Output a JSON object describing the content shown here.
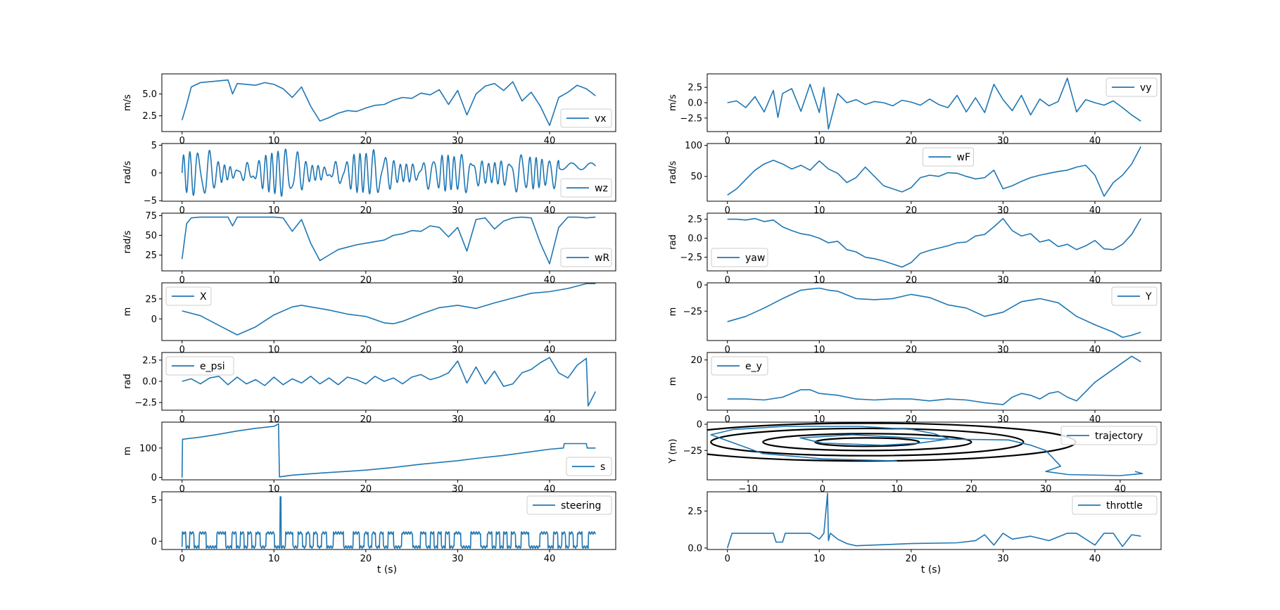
{
  "figure": {
    "xlabel_left": "t (s)",
    "xlabel_right": "t (s)"
  },
  "colors": {
    "series": "#1f77b4",
    "track": "#000000",
    "axes": "#000000",
    "background": "#ffffff"
  },
  "chart_data": [
    {
      "id": "vx",
      "type": "line",
      "col": 0,
      "row": 0,
      "legend": "vx",
      "legend_loc": "lower-right",
      "ylabel": "m/s",
      "xlim": [
        -2.2,
        47.2
      ],
      "ylim": [
        0.7,
        7.3
      ],
      "xticks": [
        0,
        10,
        20,
        30,
        40
      ],
      "yticks": [
        2.5,
        5.0
      ],
      "ytick_labels": [
        "2.5",
        "5.0"
      ],
      "x": [
        0,
        0.5,
        1,
        2,
        3,
        4,
        5,
        5.5,
        6,
        7,
        8,
        9,
        10,
        11,
        12,
        13,
        14,
        15,
        16,
        17,
        18,
        19,
        20,
        21,
        22,
        23,
        24,
        25,
        26,
        27,
        28,
        29,
        30,
        31,
        32,
        33,
        34,
        35,
        36,
        37,
        38,
        39,
        40,
        41,
        42,
        43,
        44,
        45
      ],
      "y": [
        2.0,
        3.8,
        5.8,
        6.3,
        6.4,
        6.5,
        6.6,
        5.0,
        6.2,
        6.1,
        6.0,
        6.3,
        6.1,
        5.6,
        4.6,
        5.8,
        3.6,
        1.9,
        2.3,
        2.8,
        3.1,
        3.0,
        3.4,
        3.7,
        3.8,
        4.3,
        4.6,
        4.5,
        5.1,
        4.9,
        5.5,
        3.8,
        5.4,
        2.6,
        5.0,
        5.9,
        6.2,
        5.4,
        6.4,
        4.2,
        5.2,
        3.6,
        1.4,
        4.6,
        5.2,
        6.0,
        5.6,
        4.8
      ]
    },
    {
      "id": "vy",
      "type": "line",
      "col": 1,
      "row": 0,
      "legend": "vy",
      "legend_loc": "upper-right",
      "ylabel": "m/s",
      "xlim": [
        -2.2,
        47.2
      ],
      "ylim": [
        -4.7,
        4.7
      ],
      "xticks": [
        0,
        10,
        20,
        30,
        40
      ],
      "yticks": [
        -2.5,
        0.0,
        2.5
      ],
      "ytick_labels": [
        "−2.5",
        "0.0",
        "2.5"
      ],
      "x": [
        0,
        1,
        2,
        3,
        4,
        5,
        5.5,
        6,
        7,
        8,
        9,
        10,
        10.5,
        11,
        12,
        13,
        14,
        15,
        16,
        17,
        18,
        19,
        20,
        21,
        22,
        23,
        24,
        25,
        26,
        27,
        28,
        29,
        30,
        31,
        32,
        33,
        34,
        35,
        36,
        37,
        38,
        39,
        40,
        41,
        42,
        43,
        44,
        45
      ],
      "y": [
        0.0,
        0.3,
        -0.8,
        1.0,
        -1.5,
        2.0,
        -2.4,
        1.5,
        2.3,
        -1.4,
        3.0,
        -1.6,
        2.5,
        -4.3,
        1.5,
        0.0,
        0.5,
        -0.3,
        0.2,
        0.0,
        -0.5,
        0.4,
        0.1,
        -0.4,
        0.6,
        -0.3,
        -0.8,
        1.2,
        -1.5,
        0.8,
        -1.6,
        3.0,
        0.5,
        -1.3,
        1.2,
        -2.0,
        0.6,
        -0.5,
        0.2,
        4.0,
        -1.5,
        0.5,
        0.0,
        -0.4,
        0.3,
        -0.8,
        -2.0,
        -3.0
      ]
    },
    {
      "id": "wz",
      "type": "line",
      "col": 0,
      "row": 1,
      "legend": "wz",
      "legend_loc": "lower-right",
      "ylabel": "rad/s",
      "xlim": [
        -2.2,
        47.2
      ],
      "ylim": [
        -5.1,
        5.3
      ],
      "xticks": [
        0,
        10,
        20,
        30,
        40
      ],
      "yticks": [
        -5,
        0,
        5
      ],
      "ytick_labels": [
        "−5",
        "0",
        "5"
      ],
      "x_range": [
        0,
        45
      ],
      "oscillation": {
        "frequency_per_s": 2.3,
        "amplitude": 3.6,
        "end_calm_from": 41
      }
    },
    {
      "id": "wF",
      "type": "line",
      "col": 1,
      "row": 1,
      "legend": "wF",
      "legend_loc": "upper-center",
      "ylabel": "rad/s",
      "xlim": [
        -2.2,
        47.2
      ],
      "ylim": [
        10,
        103
      ],
      "xticks": [
        0,
        10,
        20,
        30,
        40
      ],
      "yticks": [
        50,
        100
      ],
      "ytick_labels": [
        "50",
        "100"
      ],
      "x": [
        0,
        1,
        2,
        3,
        4,
        5,
        6,
        7,
        8,
        9,
        10,
        11,
        12,
        13,
        14,
        15,
        16,
        17,
        18,
        19,
        20,
        21,
        22,
        23,
        24,
        25,
        26,
        27,
        28,
        29,
        30,
        31,
        32,
        33,
        34,
        35,
        36,
        37,
        38,
        39,
        40,
        41,
        42,
        43,
        44,
        45
      ],
      "y": [
        20,
        30,
        45,
        60,
        70,
        76,
        70,
        62,
        68,
        60,
        75,
        62,
        55,
        40,
        48,
        65,
        50,
        35,
        30,
        25,
        32,
        48,
        52,
        50,
        56,
        55,
        50,
        46,
        48,
        60,
        30,
        35,
        42,
        48,
        52,
        55,
        58,
        60,
        65,
        68,
        52,
        18,
        40,
        52,
        70,
        98
      ]
    },
    {
      "id": "wR",
      "type": "line",
      "col": 0,
      "row": 2,
      "legend": "wR",
      "legend_loc": "lower-right",
      "ylabel": "rad/s",
      "xlim": [
        -2.2,
        47.2
      ],
      "ylim": [
        5,
        78
      ],
      "xticks": [
        0,
        10,
        20,
        30,
        40
      ],
      "yticks": [
        25,
        50,
        75
      ],
      "ytick_labels": [
        "25",
        "50",
        "75"
      ],
      "x": [
        0,
        0.5,
        1,
        2,
        3,
        4,
        5,
        5.5,
        6,
        7,
        8,
        9,
        10,
        11,
        12,
        13,
        14,
        15,
        16,
        17,
        18,
        19,
        20,
        21,
        22,
        23,
        24,
        25,
        26,
        27,
        28,
        29,
        30,
        31,
        32,
        33,
        34,
        35,
        36,
        37,
        38,
        39,
        40,
        41,
        42,
        43,
        44,
        45
      ],
      "y": [
        20,
        65,
        72,
        73,
        73,
        73,
        73,
        62,
        73,
        73,
        73,
        73,
        73,
        72,
        55,
        70,
        40,
        18,
        25,
        32,
        35,
        38,
        40,
        42,
        44,
        50,
        52,
        56,
        55,
        62,
        60,
        48,
        60,
        30,
        70,
        72,
        58,
        68,
        72,
        73,
        72,
        40,
        14,
        60,
        73,
        73,
        72,
        73
      ]
    },
    {
      "id": "yaw",
      "type": "line",
      "col": 1,
      "row": 2,
      "legend": "yaw",
      "legend_loc": "lower-left",
      "ylabel": "rad",
      "xlim": [
        -2.2,
        47.2
      ],
      "ylim": [
        -4.3,
        3.3
      ],
      "xticks": [
        0,
        10,
        20,
        30,
        40
      ],
      "yticks": [
        -2.5,
        0.0,
        2.5
      ],
      "ytick_labels": [
        "−2.5",
        "0.0",
        "2.5"
      ],
      "x": [
        0,
        1,
        2,
        3,
        4,
        5,
        6,
        7,
        8,
        9,
        10,
        11,
        12,
        13,
        14,
        15,
        16,
        17,
        18,
        19,
        20,
        21,
        22,
        23,
        24,
        25,
        26,
        27,
        28,
        29,
        30,
        31,
        32,
        33,
        34,
        35,
        36,
        37,
        38,
        39,
        40,
        41,
        42,
        43,
        44,
        45
      ],
      "y": [
        2.5,
        2.5,
        2.4,
        2.6,
        2.2,
        2.4,
        1.5,
        1.0,
        0.6,
        0.4,
        0.0,
        -0.6,
        -0.4,
        -1.5,
        -1.8,
        -2.5,
        -2.7,
        -3.0,
        -3.4,
        -3.8,
        -3.2,
        -2.0,
        -1.6,
        -1.3,
        -1.0,
        -0.6,
        -0.5,
        0.3,
        0.5,
        1.5,
        2.6,
        1.0,
        0.3,
        0.6,
        -0.5,
        -0.2,
        -1.1,
        -0.8,
        -1.5,
        -1.0,
        -0.3,
        -1.4,
        -1.5,
        -0.8,
        0.5,
        2.6
      ]
    },
    {
      "id": "X",
      "type": "line",
      "col": 0,
      "row": 3,
      "legend": "X",
      "legend_loc": "upper-left",
      "ylabel": "m",
      "xlim": [
        -2.2,
        47.2
      ],
      "ylim": [
        -27,
        45
      ],
      "xticks": [
        0,
        10,
        20,
        30,
        40
      ],
      "yticks": [
        0,
        25
      ],
      "ytick_labels": [
        "0",
        "25"
      ],
      "x": [
        0,
        2,
        4,
        6,
        8,
        10,
        12,
        13,
        14,
        16,
        18,
        20,
        22,
        23,
        24,
        26,
        28,
        30,
        32,
        34,
        36,
        38,
        40,
        42,
        44,
        45
      ],
      "y": [
        10,
        4,
        -8,
        -20,
        -10,
        5,
        15,
        17,
        15,
        11,
        6,
        3,
        -5,
        -6,
        -3,
        6,
        14,
        17,
        13,
        20,
        26,
        32,
        34,
        38,
        44,
        44
      ]
    },
    {
      "id": "Y",
      "type": "line",
      "col": 1,
      "row": 3,
      "legend": "Y",
      "legend_loc": "upper-right",
      "ylabel": "m",
      "xlim": [
        -2.2,
        47.2
      ],
      "ylim": [
        -53,
        2
      ],
      "xticks": [
        0,
        10,
        20,
        30,
        40
      ],
      "yticks": [
        -25,
        0
      ],
      "ytick_labels": [
        "−25",
        "0"
      ],
      "x": [
        0,
        2,
        4,
        6,
        8,
        10,
        11,
        12,
        14,
        16,
        18,
        20,
        22,
        24,
        26,
        28,
        30,
        32,
        34,
        36,
        38,
        40,
        42,
        43,
        44,
        45
      ],
      "y": [
        -35,
        -30,
        -22,
        -13,
        -5,
        -3,
        -5,
        -6,
        -13,
        -14,
        -13,
        -9,
        -12,
        -19,
        -22,
        -30,
        -26,
        -16,
        -13,
        -17,
        -30,
        -38,
        -45,
        -50,
        -48,
        -45
      ]
    },
    {
      "id": "e_psi",
      "type": "line",
      "col": 0,
      "row": 4,
      "legend": "e_psi",
      "legend_loc": "upper-left",
      "ylabel": "rad",
      "xlim": [
        -2.2,
        47.2
      ],
      "ylim": [
        -3.4,
        3.4
      ],
      "xticks": [
        0,
        10,
        20,
        30,
        40
      ],
      "yticks": [
        -2.5,
        0.0,
        2.5
      ],
      "ytick_labels": [
        "−2.5",
        "0.0",
        "2.5"
      ],
      "x": [
        0,
        1,
        2,
        3,
        4,
        5,
        6,
        7,
        8,
        9,
        10,
        11,
        12,
        13,
        14,
        15,
        16,
        17,
        18,
        19,
        20,
        21,
        22,
        23,
        24,
        25,
        26,
        27,
        28,
        29,
        30,
        31,
        32,
        33,
        34,
        35,
        36,
        37,
        38,
        39,
        40,
        41,
        42,
        43,
        44,
        44.2,
        45
      ],
      "y": [
        0,
        0.3,
        -0.3,
        0.4,
        0.6,
        -0.4,
        0.5,
        -0.3,
        0.2,
        -0.5,
        0.5,
        -0.4,
        0.3,
        -0.2,
        0.6,
        -0.3,
        0.4,
        -0.4,
        0.5,
        0.2,
        -0.3,
        0.6,
        0.0,
        0.4,
        -0.3,
        0.5,
        0.8,
        0.2,
        0.5,
        1.0,
        2.4,
        -0.2,
        1.7,
        -0.3,
        1.2,
        -0.6,
        -0.3,
        1.0,
        1.4,
        2.2,
        2.8,
        1.0,
        0.4,
        1.9,
        2.7,
        -2.9,
        -1.2
      ]
    },
    {
      "id": "e_y",
      "type": "line",
      "col": 1,
      "row": 4,
      "legend": "e_y",
      "legend_loc": "upper-left",
      "ylabel": "m",
      "xlim": [
        -2.2,
        47.2
      ],
      "ylim": [
        -7,
        24
      ],
      "xticks": [
        0,
        10,
        20,
        30,
        40
      ],
      "yticks": [
        0,
        20
      ],
      "ytick_labels": [
        "0",
        "20"
      ],
      "x": [
        0,
        2,
        4,
        6,
        8,
        9,
        10,
        12,
        14,
        16,
        18,
        20,
        22,
        24,
        26,
        28,
        30,
        31,
        32,
        33,
        34,
        35,
        36,
        37,
        38,
        40,
        42,
        44,
        45
      ],
      "y": [
        -1,
        -1,
        -1.5,
        0,
        4,
        4,
        2,
        1,
        -1,
        -1.5,
        -1,
        -1,
        -2,
        -1,
        -1.5,
        -3,
        -4,
        0,
        2,
        1,
        -1,
        2,
        3,
        0,
        -2,
        8,
        15,
        22,
        19
      ]
    },
    {
      "id": "s",
      "type": "line",
      "col": 0,
      "row": 5,
      "legend": "s",
      "legend_loc": "lower-right",
      "ylabel": "m",
      "xlim": [
        -2.2,
        47.2
      ],
      "ylim": [
        -8,
        188
      ],
      "xticks": [
        0,
        10,
        20,
        30,
        40
      ],
      "yticks": [
        0,
        100
      ],
      "ytick_labels": [
        "0",
        "100"
      ],
      "x": [
        0,
        0.05,
        2,
        4,
        6,
        8,
        10,
        10.5,
        10.6,
        12,
        15,
        18,
        20,
        23,
        26,
        30,
        32,
        35,
        40,
        41.5,
        41.6,
        44,
        44.1,
        45
      ],
      "y": [
        0,
        130,
        137,
        147,
        158,
        167,
        174,
        182,
        2,
        8,
        15,
        21,
        25,
        34,
        45,
        57,
        65,
        75,
        96,
        100,
        115,
        115,
        100,
        100
      ]
    },
    {
      "id": "trajectory",
      "type": "line",
      "col": 1,
      "row": 5,
      "legend": "trajectory",
      "legend_loc": "upper-right",
      "ylabel": "Y (m)",
      "xlim": [
        -15.5,
        45.5
      ],
      "ylim": [
        -53,
        2
      ],
      "xticks": [
        -10,
        0,
        10,
        20,
        30,
        40
      ],
      "xtick_labels": [
        "−10",
        "0",
        "10",
        "20",
        "30",
        "40"
      ],
      "yticks": [
        -25,
        0
      ],
      "ytick_labels": [
        "−25",
        "0"
      ],
      "x": [
        10,
        0,
        -8,
        -15,
        -12,
        -5,
        5,
        12,
        15,
        17,
        13,
        8,
        0,
        -3,
        4,
        12,
        15,
        25,
        28,
        30,
        32,
        30,
        33,
        40,
        43,
        42
      ],
      "y": [
        -35,
        -33,
        -28,
        -10,
        -5,
        -2,
        -2,
        -5,
        -9,
        -14,
        -18,
        -20,
        -18,
        -13,
        -10,
        -13,
        -14,
        -15,
        -20,
        -25,
        -40,
        -45,
        -48,
        -49,
        -47,
        -45
      ],
      "track": {
        "center": [
          6,
          -17
        ],
        "loops": [
          {
            "rx": 28,
            "ry": 18
          },
          {
            "rx": 21,
            "ry": 13
          },
          {
            "rx": 14,
            "ry": 8
          },
          {
            "rx": 7,
            "ry": 4
          }
        ]
      }
    },
    {
      "id": "steering",
      "type": "line",
      "col": 0,
      "row": 6,
      "legend": "steering",
      "legend_loc": "upper-right",
      "ylabel": "",
      "xlim": [
        -2.2,
        47.2
      ],
      "ylim": [
        -1.0,
        6.0
      ],
      "xticks": [
        0,
        10,
        20,
        30,
        40
      ],
      "xtick_labels": [
        "0",
        "10",
        "20",
        "30",
        "40"
      ],
      "yticks": [
        0,
        5
      ],
      "ytick_labels": [
        "0",
        "5"
      ],
      "x_range": [
        0,
        45
      ],
      "square_wave": {
        "high": 1.0,
        "low": -0.7,
        "spike_at": 10.7,
        "spike_value": 5.4
      }
    },
    {
      "id": "throttle",
      "type": "line",
      "col": 1,
      "row": 6,
      "legend": "throttle",
      "legend_loc": "upper-right",
      "ylabel": "",
      "xlim": [
        -2.2,
        47.2
      ],
      "ylim": [
        -0.1,
        3.8
      ],
      "xticks": [
        0,
        10,
        20,
        30,
        40
      ],
      "xtick_labels": [
        "0",
        "10",
        "20",
        "30",
        "40"
      ],
      "yticks": [
        0.0,
        2.5
      ],
      "ytick_labels": [
        "0.0",
        "2.5"
      ],
      "x": [
        0,
        0.5,
        1,
        4,
        5,
        5.3,
        6,
        6.3,
        8,
        9,
        10,
        10.5,
        10.9,
        11,
        11.2,
        12,
        13,
        14,
        20,
        25,
        27,
        28,
        29,
        30,
        31,
        33,
        35,
        37,
        38,
        40,
        41,
        42,
        43,
        44,
        45
      ],
      "y": [
        0,
        1,
        1,
        1,
        1,
        0.4,
        0.4,
        1,
        1,
        1,
        0.6,
        1,
        3.7,
        0.5,
        1,
        0.6,
        0.3,
        0.15,
        0.3,
        0.35,
        0.5,
        0.9,
        0.2,
        1.0,
        0.6,
        0.8,
        0.5,
        1.0,
        1.0,
        0.2,
        1.0,
        1.0,
        0.1,
        0.9,
        0.8
      ]
    }
  ]
}
